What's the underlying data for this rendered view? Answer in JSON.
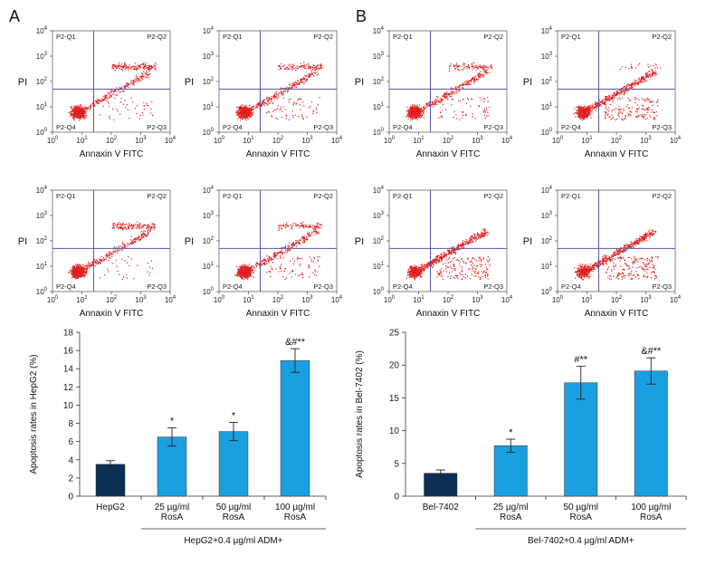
{
  "panels": [
    {
      "label": "A"
    },
    {
      "label": "B"
    }
  ],
  "flow": {
    "xlabel": "Annaxin V FITC",
    "ylabel": "PI",
    "quadrants": [
      "P2-Q1",
      "P2-Q2",
      "P2-Q3",
      "P2-Q4"
    ],
    "ticks": [
      {
        "base": "10",
        "exp": "0"
      },
      {
        "base": "10",
        "exp": "1"
      },
      {
        "base": "10",
        "exp": "2"
      },
      {
        "base": "10",
        "exp": "3"
      },
      {
        "base": "10",
        "exp": "4"
      }
    ],
    "gate": {
      "x": 1.4,
      "y": 1.7
    },
    "dot_color": "#e02020",
    "gate_color": "#5555aa",
    "plots": [
      {
        "panel": "A",
        "condition": "HepG2",
        "apoptosis_percent": 3.5
      },
      {
        "panel": "A",
        "condition": "25 µg/ml RosA",
        "apoptosis_percent": 6.5
      },
      {
        "panel": "A",
        "condition": "50 µg/ml RosA",
        "apoptosis_percent": 7.1
      },
      {
        "panel": "A",
        "condition": "100 µg/ml RosA",
        "apoptosis_percent": 14.9
      },
      {
        "panel": "B",
        "condition": "Bel-7402",
        "apoptosis_percent": 3.5
      },
      {
        "panel": "B",
        "condition": "25 µg/ml RosA",
        "apoptosis_percent": 7.7
      },
      {
        "panel": "B",
        "condition": "50 µg/ml RosA",
        "apoptosis_percent": 17.3
      },
      {
        "panel": "B",
        "condition": "100 µg/ml RosA",
        "apoptosis_percent": 19.1
      }
    ]
  },
  "chart_data": [
    {
      "type": "bar",
      "panel": "A",
      "ylabel": "Apoptosis rates in HepG2 (%)",
      "ylim": [
        0,
        18
      ],
      "yticks": [
        0,
        2,
        4,
        6,
        8,
        10,
        12,
        14,
        16,
        18
      ],
      "categories": [
        [
          "HepG2"
        ],
        [
          "25 µg/ml",
          "RosA"
        ],
        [
          "50 µg/ml",
          "RosA"
        ],
        [
          "100 µg/ml",
          "RosA"
        ]
      ],
      "values": [
        3.5,
        6.5,
        7.1,
        14.9
      ],
      "errors": [
        0.4,
        1.0,
        1.0,
        1.3
      ],
      "annotations": [
        "",
        "*",
        "*",
        "&#**"
      ],
      "colors": [
        "#0c2f55",
        "#1aa0e0",
        "#1aa0e0",
        "#1aa0e0"
      ],
      "group_label": "HepG2+0.4 µg/ml ADM+"
    },
    {
      "type": "bar",
      "panel": "B",
      "ylabel": "Apoptosis rates in Bel-7402 (%)",
      "ylim": [
        0,
        25
      ],
      "yticks": [
        0,
        5,
        10,
        15,
        20,
        25
      ],
      "categories": [
        [
          "Bel-7402"
        ],
        [
          "25 µg/ml",
          "RosA"
        ],
        [
          "50 µg/ml",
          "RosA"
        ],
        [
          "100 µg/ml",
          "RosA"
        ]
      ],
      "values": [
        3.5,
        7.7,
        17.3,
        19.1
      ],
      "errors": [
        0.5,
        1.0,
        2.5,
        2.0
      ],
      "annotations": [
        "",
        "*",
        "#**",
        "&#**"
      ],
      "colors": [
        "#0c2f55",
        "#1aa0e0",
        "#1aa0e0",
        "#1aa0e0"
      ],
      "group_label": "Bel-7402+0.4 µg/ml ADM+"
    }
  ]
}
